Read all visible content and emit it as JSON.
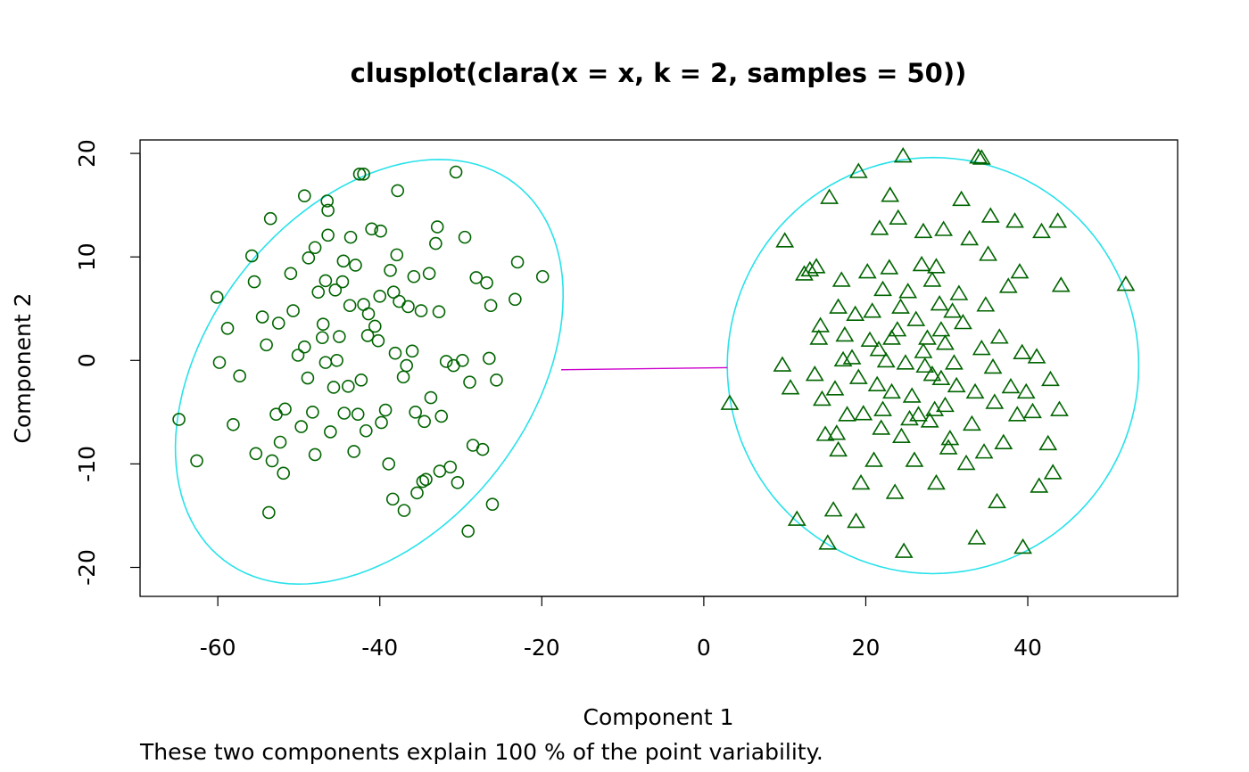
{
  "chart_data": {
    "type": "scatter",
    "title": "clusplot(clara(x = x, k = 2, samples = 50))",
    "xlabel": "Component 1",
    "ylabel": "Component 2",
    "subtitle": "These two components explain 100 % of the point variability.",
    "xlim": [
      -69.6,
      58.5
    ],
    "ylim": [
      -22.8,
      21.3
    ],
    "xticks": [
      -60,
      -40,
      -20,
      0,
      20,
      40
    ],
    "yticks": [
      -20,
      -10,
      0,
      10,
      20
    ],
    "xtick_labels": [
      "-60",
      "-40",
      "-20",
      "0",
      "20",
      "40"
    ],
    "ytick_labels": [
      "-20",
      "-10",
      "0",
      "10",
      "20"
    ],
    "grid": false,
    "colors": {
      "points": "#006400",
      "ellipse": "#28e2ea",
      "connector": "#cc00cc",
      "frame": "#000000"
    },
    "series": [
      {
        "marker": "circle",
        "points": [
          [
            -64.8,
            -5.7
          ],
          [
            -62.6,
            -9.7
          ],
          [
            -60.1,
            6.1
          ],
          [
            -59.8,
            -0.2
          ],
          [
            -58.8,
            3.1
          ],
          [
            -58.1,
            -6.2
          ],
          [
            -57.3,
            -1.5
          ],
          [
            -55.8,
            10.1
          ],
          [
            -55.5,
            7.6
          ],
          [
            -55.3,
            -9.0
          ],
          [
            -54.5,
            4.2
          ],
          [
            -54.0,
            1.5
          ],
          [
            -53.5,
            13.7
          ],
          [
            -53.3,
            -9.7
          ],
          [
            -53.7,
            -14.7
          ],
          [
            -52.8,
            -5.2
          ],
          [
            -52.5,
            3.6
          ],
          [
            -52.3,
            -7.9
          ],
          [
            -51.9,
            -10.9
          ],
          [
            -51.7,
            -4.7
          ],
          [
            -51.0,
            8.4
          ],
          [
            -50.7,
            4.8
          ],
          [
            -50.1,
            0.5
          ],
          [
            -49.7,
            -6.4
          ],
          [
            -49.3,
            15.9
          ],
          [
            -49.3,
            1.3
          ],
          [
            -48.9,
            -1.7
          ],
          [
            -48.8,
            9.9
          ],
          [
            -48.3,
            -5.0
          ],
          [
            -48.0,
            10.9
          ],
          [
            -48.0,
            -9.1
          ],
          [
            -47.6,
            6.6
          ],
          [
            -47.1,
            2.2
          ],
          [
            -47.0,
            3.5
          ],
          [
            -46.7,
            7.7
          ],
          [
            -46.7,
            -0.2
          ],
          [
            -46.5,
            15.4
          ],
          [
            -46.4,
            14.5
          ],
          [
            -46.4,
            12.1
          ],
          [
            -46.1,
            -6.9
          ],
          [
            -45.7,
            -2.6
          ],
          [
            -45.5,
            6.8
          ],
          [
            -45.3,
            0.0
          ],
          [
            -45.0,
            2.3
          ],
          [
            -44.6,
            7.6
          ],
          [
            -44.5,
            9.6
          ],
          [
            -44.4,
            -5.1
          ],
          [
            -43.9,
            -2.5
          ],
          [
            -43.7,
            5.3
          ],
          [
            -43.6,
            11.9
          ],
          [
            -43.2,
            -8.8
          ],
          [
            -43.0,
            9.2
          ],
          [
            -42.7,
            -5.2
          ],
          [
            -42.5,
            18.0
          ],
          [
            -42.0,
            18.0
          ],
          [
            -42.3,
            -1.9
          ],
          [
            -42.0,
            5.4
          ],
          [
            -41.7,
            -6.8
          ],
          [
            -41.5,
            2.4
          ],
          [
            -41.4,
            4.5
          ],
          [
            -41.0,
            12.7
          ],
          [
            -40.6,
            3.3
          ],
          [
            -40.2,
            1.9
          ],
          [
            -40.0,
            6.2
          ],
          [
            -39.9,
            12.5
          ],
          [
            -39.8,
            -6.0
          ],
          [
            -39.3,
            -4.8
          ],
          [
            -38.9,
            -10.0
          ],
          [
            -38.7,
            8.7
          ],
          [
            -38.4,
            -13.4
          ],
          [
            -38.3,
            6.6
          ],
          [
            -38.1,
            0.7
          ],
          [
            -37.9,
            10.2
          ],
          [
            -37.8,
            16.4
          ],
          [
            -37.6,
            5.7
          ],
          [
            -37.1,
            -1.6
          ],
          [
            -37.0,
            -14.5
          ],
          [
            -36.7,
            -0.5
          ],
          [
            -36.5,
            5.2
          ],
          [
            -36.0,
            0.9
          ],
          [
            -35.8,
            8.1
          ],
          [
            -35.6,
            -5.0
          ],
          [
            -35.4,
            -12.8
          ],
          [
            -34.9,
            4.8
          ],
          [
            -34.7,
            -11.7
          ],
          [
            -34.5,
            -5.9
          ],
          [
            -34.3,
            -11.5
          ],
          [
            -33.9,
            8.4
          ],
          [
            -33.7,
            -3.6
          ],
          [
            -33.1,
            11.3
          ],
          [
            -32.9,
            12.9
          ],
          [
            -32.7,
            4.7
          ],
          [
            -32.6,
            -10.7
          ],
          [
            -32.4,
            -5.4
          ],
          [
            -31.8,
            -0.1
          ],
          [
            -31.3,
            -10.3
          ],
          [
            -30.9,
            -0.5
          ],
          [
            -30.6,
            18.2
          ],
          [
            -30.4,
            -11.8
          ],
          [
            -29.8,
            0.0
          ],
          [
            -29.5,
            11.9
          ],
          [
            -29.1,
            -16.5
          ],
          [
            -28.9,
            -2.1
          ],
          [
            -28.5,
            -8.2
          ],
          [
            -28.1,
            8.0
          ],
          [
            -27.3,
            -8.6
          ],
          [
            -26.8,
            7.5
          ],
          [
            -26.5,
            0.2
          ],
          [
            -26.3,
            5.3
          ],
          [
            -26.1,
            -13.9
          ],
          [
            -25.6,
            -1.9
          ],
          [
            -23.3,
            5.9
          ],
          [
            -23.0,
            9.5
          ],
          [
            -19.9,
            8.1
          ]
        ]
      },
      {
        "marker": "triangle",
        "points": [
          [
            3.2,
            -4.2
          ],
          [
            10.0,
            11.5
          ],
          [
            9.7,
            -0.5
          ],
          [
            10.7,
            -2.7
          ],
          [
            11.5,
            -15.4
          ],
          [
            12.4,
            8.3
          ],
          [
            13.1,
            8.7
          ],
          [
            13.7,
            -1.4
          ],
          [
            13.9,
            9.0
          ],
          [
            14.2,
            2.1
          ],
          [
            14.4,
            3.3
          ],
          [
            14.6,
            -3.8
          ],
          [
            15.0,
            -7.2
          ],
          [
            15.3,
            -17.7
          ],
          [
            15.5,
            15.7
          ],
          [
            16.0,
            -14.5
          ],
          [
            16.2,
            -2.8
          ],
          [
            16.4,
            -7.1
          ],
          [
            16.6,
            5.1
          ],
          [
            16.6,
            -8.7
          ],
          [
            17.0,
            7.7
          ],
          [
            17.2,
            0.0
          ],
          [
            17.4,
            2.4
          ],
          [
            17.7,
            -5.3
          ],
          [
            18.3,
            0.2
          ],
          [
            18.7,
            4.4
          ],
          [
            18.8,
            -15.6
          ],
          [
            19.1,
            -1.7
          ],
          [
            19.1,
            18.2
          ],
          [
            19.4,
            -11.9
          ],
          [
            19.7,
            -5.2
          ],
          [
            20.2,
            8.5
          ],
          [
            20.5,
            1.9
          ],
          [
            20.8,
            4.7
          ],
          [
            21.0,
            -9.7
          ],
          [
            21.4,
            -2.4
          ],
          [
            21.6,
            1.0
          ],
          [
            21.7,
            12.7
          ],
          [
            21.9,
            -6.6
          ],
          [
            22.1,
            6.8
          ],
          [
            22.1,
            -4.8
          ],
          [
            22.5,
            -0.1
          ],
          [
            22.9,
            8.9
          ],
          [
            23.0,
            15.9
          ],
          [
            23.2,
            -3.1
          ],
          [
            23.2,
            2.1
          ],
          [
            23.6,
            -12.8
          ],
          [
            23.9,
            2.9
          ],
          [
            24.0,
            13.7
          ],
          [
            24.3,
            5.1
          ],
          [
            24.4,
            -7.4
          ],
          [
            24.6,
            19.7
          ],
          [
            24.7,
            -18.5
          ],
          [
            24.9,
            -0.3
          ],
          [
            25.2,
            6.6
          ],
          [
            25.4,
            -5.7
          ],
          [
            25.7,
            -3.5
          ],
          [
            26.0,
            -9.7
          ],
          [
            26.2,
            3.9
          ],
          [
            26.5,
            -5.3
          ],
          [
            26.9,
            9.2
          ],
          [
            27.1,
            12.4
          ],
          [
            27.1,
            0.8
          ],
          [
            27.3,
            -0.6
          ],
          [
            27.6,
            2.1
          ],
          [
            27.9,
            -5.9
          ],
          [
            28.2,
            7.7
          ],
          [
            28.2,
            -1.4
          ],
          [
            28.5,
            -4.8
          ],
          [
            28.7,
            -11.9
          ],
          [
            28.7,
            9.0
          ],
          [
            29.1,
            5.4
          ],
          [
            29.3,
            -1.8
          ],
          [
            29.3,
            2.9
          ],
          [
            29.6,
            12.6
          ],
          [
            29.8,
            1.6
          ],
          [
            29.8,
            -4.4
          ],
          [
            30.2,
            -8.5
          ],
          [
            30.4,
            -7.6
          ],
          [
            30.7,
            4.7
          ],
          [
            30.9,
            -0.3
          ],
          [
            31.2,
            -2.5
          ],
          [
            31.5,
            6.4
          ],
          [
            31.8,
            15.5
          ],
          [
            32.0,
            3.6
          ],
          [
            32.4,
            -10.0
          ],
          [
            32.8,
            11.7
          ],
          [
            33.1,
            -6.2
          ],
          [
            33.5,
            -3.1
          ],
          [
            33.7,
            -17.2
          ],
          [
            33.9,
            19.6
          ],
          [
            34.3,
            1.1
          ],
          [
            34.3,
            19.5
          ],
          [
            34.6,
            -8.9
          ],
          [
            34.8,
            5.3
          ],
          [
            35.1,
            10.2
          ],
          [
            35.4,
            13.9
          ],
          [
            35.7,
            -0.7
          ],
          [
            35.9,
            -4.1
          ],
          [
            36.2,
            -13.7
          ],
          [
            36.5,
            2.2
          ],
          [
            37.0,
            -8.0
          ],
          [
            37.6,
            7.1
          ],
          [
            37.9,
            -2.6
          ],
          [
            38.4,
            13.4
          ],
          [
            38.7,
            -5.3
          ],
          [
            39.0,
            8.5
          ],
          [
            39.3,
            0.7
          ],
          [
            39.4,
            -18.1
          ],
          [
            39.8,
            -3.1
          ],
          [
            40.6,
            -5.0
          ],
          [
            41.1,
            0.3
          ],
          [
            41.4,
            -12.2
          ],
          [
            41.7,
            12.4
          ],
          [
            42.5,
            -8.1
          ],
          [
            42.8,
            -1.9
          ],
          [
            43.1,
            -10.9
          ],
          [
            43.7,
            13.4
          ],
          [
            43.9,
            -4.8
          ],
          [
            44.1,
            7.2
          ],
          [
            52.1,
            7.3
          ]
        ]
      }
    ],
    "ellipses": [
      {
        "center": [
          -41.3,
          -1.1
        ],
        "axis_u": [
          23.6,
          4.1
        ],
        "axis_v": [
          4.0,
          20.1
        ]
      },
      {
        "center": [
          28.3,
          -0.5
        ],
        "axis_u": [
          25.4,
          0.0
        ],
        "axis_v": [
          0.0,
          20.1
        ]
      }
    ],
    "connector": [
      [
        -17.6,
        -0.9
      ],
      [
        2.9,
        -0.7
      ]
    ]
  }
}
